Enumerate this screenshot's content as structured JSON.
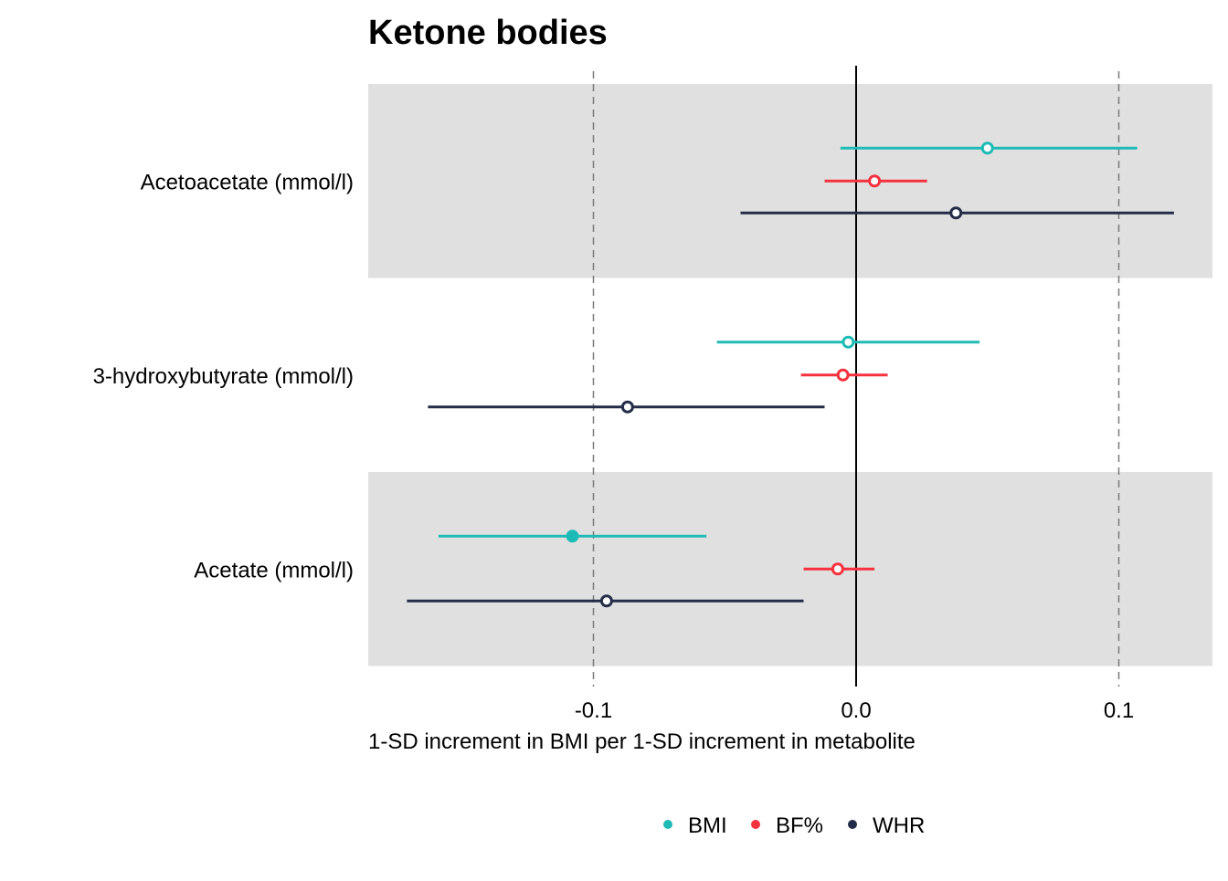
{
  "chart_data": {
    "type": "forest",
    "title": "Ketone bodies",
    "xlabel": "1-SD increment in BMI per 1-SD increment in metabolite",
    "ylabel": "",
    "xlim": [
      -0.19,
      0.135
    ],
    "xticks": [
      -0.1,
      0.0,
      0.1
    ],
    "xtick_labels": [
      "-0.1",
      "0.0",
      "0.1"
    ],
    "reference_line": 0.0,
    "dashed_lines": [
      -0.1,
      0.1
    ],
    "categories": [
      "Acetoacetate (mmol/l)",
      "3-hydroxybutyrate (mmol/l)",
      "Acetate (mmol/l)"
    ],
    "shaded_bands": [
      true,
      false,
      true
    ],
    "series": [
      {
        "name": "BMI",
        "color": "#1ebbb6",
        "points": [
          {
            "estimate": 0.05,
            "lower": -0.006,
            "upper": 0.107,
            "filled": false
          },
          {
            "estimate": -0.003,
            "lower": -0.053,
            "upper": 0.047,
            "filled": false
          },
          {
            "estimate": -0.108,
            "lower": -0.159,
            "upper": -0.057,
            "filled": true
          }
        ]
      },
      {
        "name": "BF%",
        "color": "#f5323e",
        "points": [
          {
            "estimate": 0.007,
            "lower": -0.012,
            "upper": 0.027,
            "filled": false
          },
          {
            "estimate": -0.005,
            "lower": -0.021,
            "upper": 0.012,
            "filled": false
          },
          {
            "estimate": -0.007,
            "lower": -0.02,
            "upper": 0.007,
            "filled": false
          }
        ]
      },
      {
        "name": "WHR",
        "color": "#232d48",
        "points": [
          {
            "estimate": 0.038,
            "lower": -0.044,
            "upper": 0.121,
            "filled": false
          },
          {
            "estimate": -0.087,
            "lower": -0.163,
            "upper": -0.012,
            "filled": false
          },
          {
            "estimate": -0.095,
            "lower": -0.171,
            "upper": -0.02,
            "filled": false
          }
        ]
      }
    ],
    "legend": {
      "position": "bottom",
      "items": [
        "BMI",
        "BF%",
        "WHR"
      ]
    },
    "grid": false
  }
}
